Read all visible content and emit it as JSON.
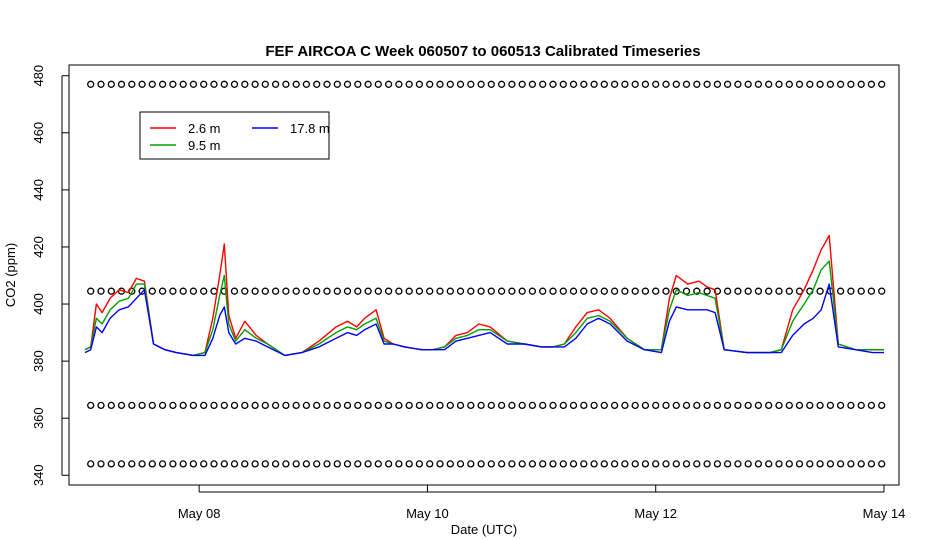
{
  "chart_data": {
    "type": "line",
    "title": "FEF AIRCOA C  Week 060507 to 060513  Calibrated Timeseries",
    "xlabel": "Date (UTC)",
    "ylabel": "CO2 (ppm)",
    "x_range_days": [
      7.0,
      14.0
    ],
    "ylim": [
      338,
      482
    ],
    "x_ticks": [
      {
        "day": 8,
        "label": "May 08"
      },
      {
        "day": 10,
        "label": "May 10"
      },
      {
        "day": 12,
        "label": "May 12"
      },
      {
        "day": 14,
        "label": "May 14"
      }
    ],
    "y_ticks": [
      340,
      360,
      380,
      400,
      420,
      440,
      460,
      480
    ],
    "grid": false,
    "legend": {
      "placement": "top-left",
      "entries": [
        {
          "label": "2.6 m",
          "color": "#ff0000"
        },
        {
          "label": "9.5 m",
          "color": "#00a000"
        },
        {
          "label": "17.8 m",
          "color": "#0000ff"
        }
      ]
    },
    "series": [
      {
        "name": "2.6 m",
        "color": "#ff0000",
        "x": [
          7.0,
          7.05,
          7.1,
          7.15,
          7.22,
          7.3,
          7.38,
          7.45,
          7.52,
          7.6,
          7.7,
          7.8,
          7.95,
          8.05,
          8.12,
          8.18,
          8.22,
          8.26,
          8.32,
          8.4,
          8.5,
          8.6,
          8.75,
          8.9,
          9.05,
          9.2,
          9.3,
          9.38,
          9.45,
          9.55,
          9.62,
          9.7,
          9.8,
          9.95,
          10.05,
          10.15,
          10.25,
          10.35,
          10.45,
          10.55,
          10.7,
          10.85,
          11.0,
          11.1,
          11.2,
          11.3,
          11.4,
          11.5,
          11.6,
          11.75,
          11.9,
          12.05,
          12.12,
          12.18,
          12.28,
          12.38,
          12.45,
          12.52,
          12.6,
          12.8,
          13.0,
          13.1,
          13.2,
          13.3,
          13.38,
          13.45,
          13.52,
          13.6,
          13.75,
          13.9,
          14.0
        ],
        "y": [
          384,
          385,
          400,
          397,
          402,
          405,
          404,
          409,
          408,
          386,
          384,
          383,
          382,
          383,
          395,
          410,
          421,
          396,
          388,
          394,
          389,
          386,
          382,
          383,
          387,
          392,
          394,
          392,
          395,
          398,
          388,
          386,
          385,
          384,
          384,
          385,
          389,
          390,
          393,
          392,
          387,
          386,
          385,
          385,
          386,
          392,
          397,
          398,
          395,
          388,
          384,
          384,
          402,
          410,
          407,
          408,
          406,
          405,
          384,
          383,
          383,
          384,
          398,
          405,
          412,
          419,
          424,
          386,
          384,
          384,
          384
        ]
      },
      {
        "name": "9.5 m",
        "color": "#00a000",
        "x": [
          7.0,
          7.05,
          7.1,
          7.15,
          7.22,
          7.3,
          7.38,
          7.45,
          7.52,
          7.6,
          7.7,
          7.8,
          7.95,
          8.05,
          8.12,
          8.18,
          8.22,
          8.26,
          8.32,
          8.4,
          8.5,
          8.6,
          8.75,
          8.9,
          9.05,
          9.2,
          9.3,
          9.38,
          9.45,
          9.55,
          9.62,
          9.7,
          9.8,
          9.95,
          10.05,
          10.15,
          10.25,
          10.35,
          10.45,
          10.55,
          10.7,
          10.85,
          11.0,
          11.1,
          11.2,
          11.3,
          11.4,
          11.5,
          11.6,
          11.75,
          11.9,
          12.05,
          12.12,
          12.18,
          12.28,
          12.38,
          12.45,
          12.52,
          12.6,
          12.8,
          13.0,
          13.1,
          13.2,
          13.3,
          13.38,
          13.45,
          13.52,
          13.6,
          13.75,
          13.9,
          14.0
        ],
        "y": [
          384,
          385,
          395,
          393,
          398,
          401,
          402,
          407,
          407,
          386,
          384,
          383,
          382,
          383,
          391,
          403,
          410,
          393,
          387,
          391,
          388,
          386,
          382,
          383,
          386,
          390,
          392,
          391,
          393,
          395,
          387,
          386,
          385,
          384,
          384,
          385,
          388,
          389,
          391,
          391,
          387,
          386,
          385,
          385,
          386,
          390,
          395,
          396,
          394,
          388,
          384,
          384,
          398,
          405,
          403,
          404,
          403,
          402,
          384,
          383,
          383,
          384,
          394,
          400,
          405,
          412,
          415,
          386,
          384,
          384,
          384
        ]
      },
      {
        "name": "17.8 m",
        "color": "#0000ff",
        "x": [
          7.0,
          7.05,
          7.1,
          7.15,
          7.22,
          7.3,
          7.38,
          7.45,
          7.52,
          7.6,
          7.7,
          7.8,
          7.95,
          8.05,
          8.12,
          8.18,
          8.22,
          8.26,
          8.32,
          8.4,
          8.5,
          8.6,
          8.75,
          8.9,
          9.05,
          9.2,
          9.3,
          9.38,
          9.45,
          9.55,
          9.62,
          9.7,
          9.8,
          9.95,
          10.05,
          10.15,
          10.25,
          10.35,
          10.45,
          10.55,
          10.7,
          10.85,
          11.0,
          11.1,
          11.2,
          11.3,
          11.4,
          11.5,
          11.6,
          11.75,
          11.9,
          12.05,
          12.12,
          12.18,
          12.28,
          12.38,
          12.45,
          12.52,
          12.6,
          12.8,
          13.0,
          13.1,
          13.2,
          13.3,
          13.38,
          13.45,
          13.52,
          13.6,
          13.75,
          13.9,
          14.0
        ],
        "y": [
          383,
          384,
          392,
          390,
          395,
          398,
          399,
          402,
          405,
          386,
          384,
          383,
          382,
          382,
          388,
          396,
          399,
          390,
          386,
          388,
          387,
          385,
          382,
          383,
          385,
          388,
          390,
          389,
          391,
          393,
          386,
          386,
          385,
          384,
          384,
          384,
          387,
          388,
          389,
          390,
          386,
          386,
          385,
          385,
          385,
          388,
          393,
          395,
          393,
          387,
          384,
          383,
          394,
          399,
          398,
          398,
          398,
          397,
          384,
          383,
          383,
          383,
          389,
          393,
          395,
          398,
          407,
          385,
          384,
          383,
          383
        ]
      },
      {
        "name": "",
        "color": "#000000",
        "marker": "circle",
        "x_start": 7.05,
        "x_end": 14.0,
        "x_step": 0.09,
        "levels": [
          344,
          364.5,
          404.5,
          477
        ]
      }
    ]
  }
}
